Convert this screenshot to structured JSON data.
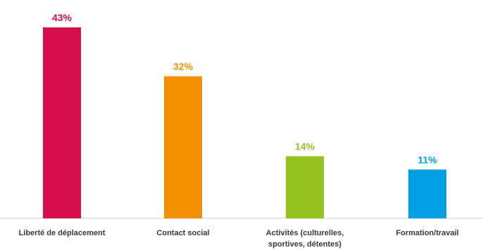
{
  "chart_data": {
    "type": "bar",
    "categories": [
      "Liberté de déplacement",
      "Contact social",
      "Activités (culturelles, sportives, détentes)",
      "Formation/travail"
    ],
    "category_lines": [
      [
        "Liberté de déplacement"
      ],
      [
        "Contact social"
      ],
      [
        "Activités (culturelles,",
        "sportives, détentes)"
      ],
      [
        "Formation/travail"
      ]
    ],
    "values": [
      43,
      32,
      14,
      11
    ],
    "value_labels": [
      "43%",
      "32%",
      "14%",
      "11%"
    ],
    "colors": [
      "#d6104f",
      "#f39000",
      "#95c11f",
      "#009fe3"
    ],
    "ylim": [
      0,
      43
    ],
    "grid": false,
    "legend": "none",
    "title": "",
    "xlabel": "",
    "ylabel": ""
  }
}
